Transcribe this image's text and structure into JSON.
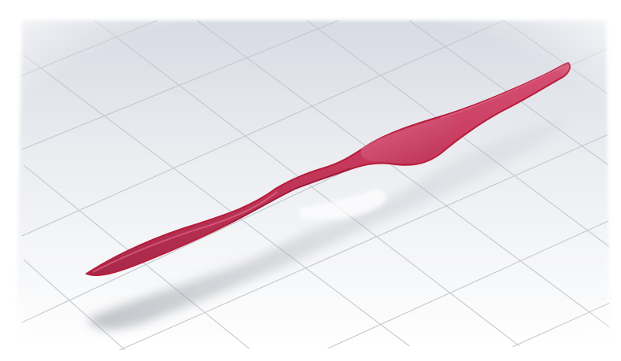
{
  "scene": {
    "object": "propeller-blade",
    "colors": {
      "background_top": "#dfe2ea",
      "background_bottom": "#ffffff",
      "grid_line": "#c9ccd2",
      "blade_main": "#c8385a",
      "blade_highlight": "#d9567a",
      "blade_edge": "#b81d36",
      "shadow": "#9aa0a8"
    },
    "grid": true,
    "reflection": true
  }
}
